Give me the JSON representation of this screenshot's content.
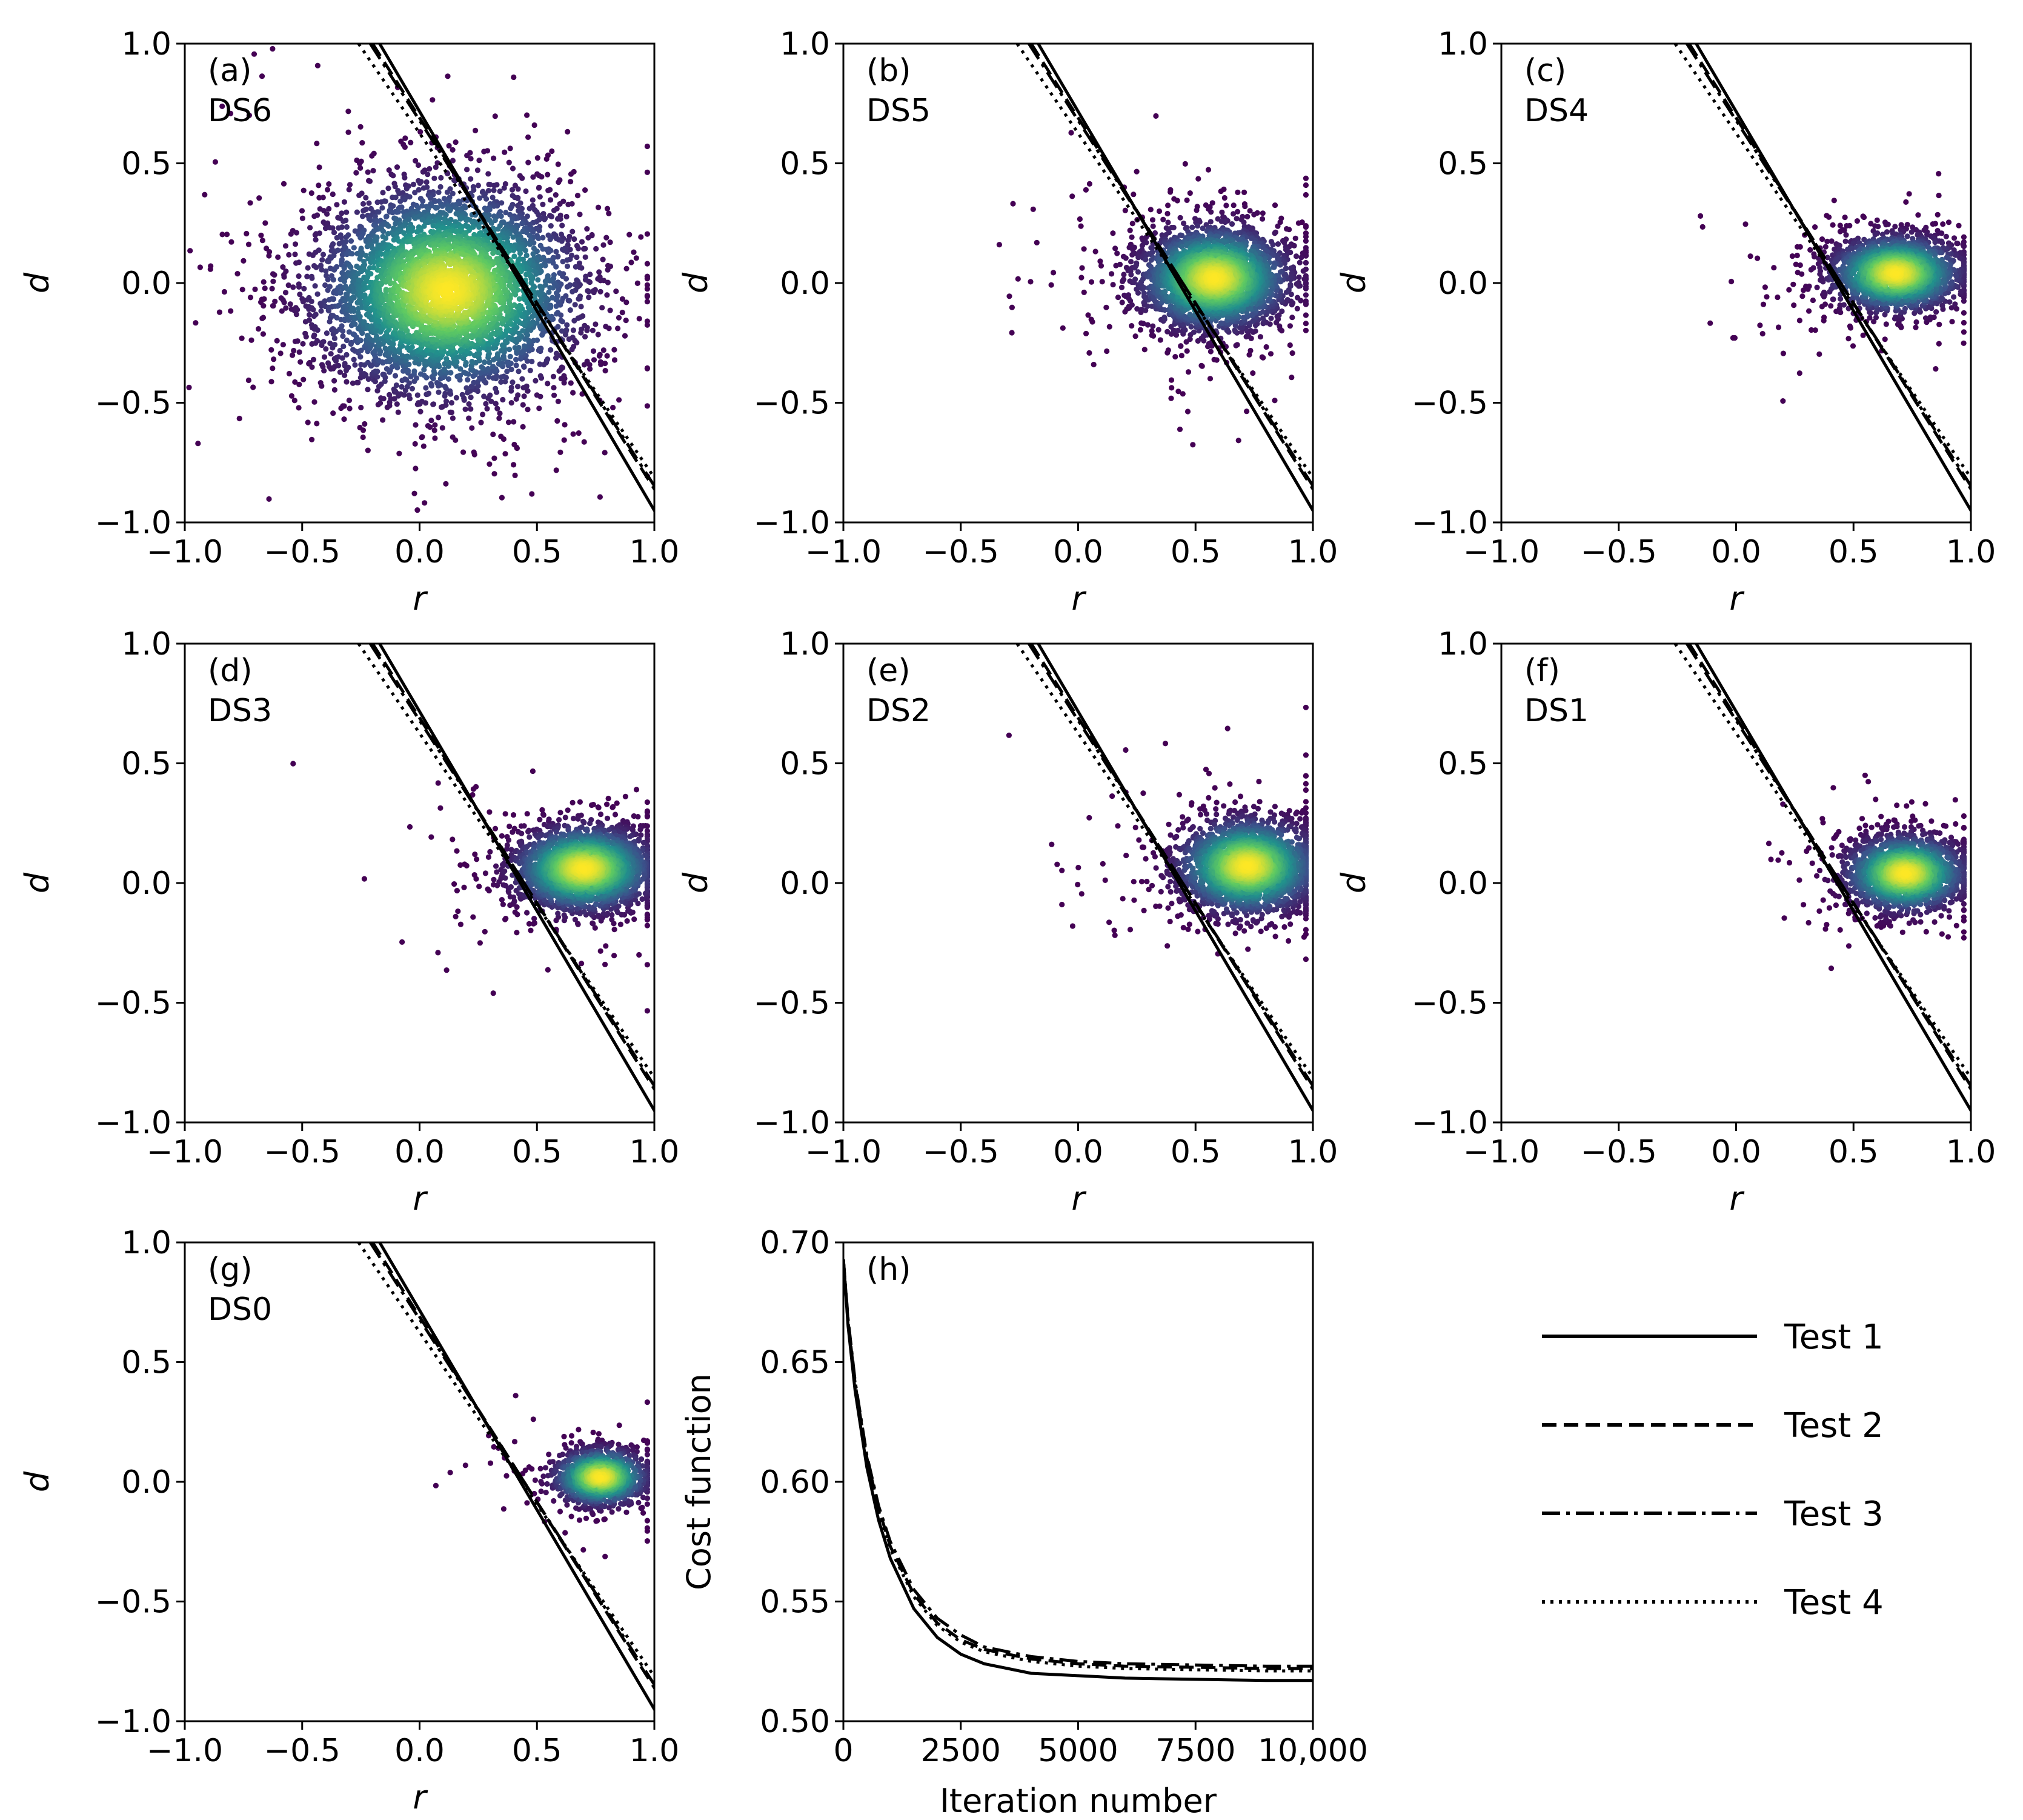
{
  "chart_data": [
    {
      "type": "scatter",
      "panel_label": "(a)",
      "dataset": "DS6",
      "xlabel": "r",
      "ylabel": "d",
      "xlim": [
        -1.0,
        1.0
      ],
      "ylim": [
        -1.0,
        1.0
      ],
      "xticks": [
        "−1.0",
        "−0.5",
        "0.0",
        "0.5",
        "1.0"
      ],
      "yticks": [
        "−1.0",
        "−0.5",
        "0.0",
        "0.5",
        "1.0"
      ],
      "cluster": {
        "center_r": 0.12,
        "center_d": -0.03,
        "spread_r": 0.28,
        "spread_d": 0.22,
        "n_points": 4500
      },
      "boundary_lines": [
        {
          "name": "Test 1",
          "style": "solid",
          "r_at_d1": -0.17,
          "r_at_dm1": 1.03
        },
        {
          "name": "Test 2",
          "style": "dashed",
          "r_at_d1": -0.2,
          "r_at_dm1": 1.09
        },
        {
          "name": "Test 3",
          "style": "dashdot",
          "r_at_d1": -0.21,
          "r_at_dm1": 1.1
        },
        {
          "name": "Test 4",
          "style": "dotted",
          "r_at_d1": -0.26,
          "r_at_dm1": 1.13
        }
      ]
    },
    {
      "type": "scatter",
      "panel_label": "(b)",
      "dataset": "DS5",
      "xlabel": "r",
      "ylabel": "d",
      "xlim": [
        -1.0,
        1.0
      ],
      "ylim": [
        -1.0,
        1.0
      ],
      "xticks": [
        "−1.0",
        "−0.5",
        "0.0",
        "0.5",
        "1.0"
      ],
      "yticks": [
        "−1.0",
        "−0.5",
        "0.0",
        "0.5",
        "1.0"
      ],
      "cluster": {
        "center_r": 0.58,
        "center_d": 0.02,
        "spread_r": 0.16,
        "spread_d": 0.11,
        "n_points": 2800
      },
      "boundary_lines": [
        {
          "name": "Test 1",
          "style": "solid",
          "r_at_d1": -0.17,
          "r_at_dm1": 1.03
        },
        {
          "name": "Test 2",
          "style": "dashed",
          "r_at_d1": -0.2,
          "r_at_dm1": 1.09
        },
        {
          "name": "Test 3",
          "style": "dashdot",
          "r_at_d1": -0.21,
          "r_at_dm1": 1.1
        },
        {
          "name": "Test 4",
          "style": "dotted",
          "r_at_d1": -0.26,
          "r_at_dm1": 1.13
        }
      ]
    },
    {
      "type": "scatter",
      "panel_label": "(c)",
      "dataset": "DS4",
      "xlabel": "r",
      "ylabel": "d",
      "xlim": [
        -1.0,
        1.0
      ],
      "ylim": [
        -1.0,
        1.0
      ],
      "xticks": [
        "−1.0",
        "−0.5",
        "0.0",
        "0.5",
        "1.0"
      ],
      "yticks": [
        "−1.0",
        "−0.5",
        "0.0",
        "0.5",
        "1.0"
      ],
      "cluster": {
        "center_r": 0.68,
        "center_d": 0.04,
        "spread_r": 0.14,
        "spread_d": 0.08,
        "n_points": 2000
      },
      "boundary_lines": [
        {
          "name": "Test 1",
          "style": "solid",
          "r_at_d1": -0.17,
          "r_at_dm1": 1.03
        },
        {
          "name": "Test 2",
          "style": "dashed",
          "r_at_d1": -0.2,
          "r_at_dm1": 1.09
        },
        {
          "name": "Test 3",
          "style": "dashdot",
          "r_at_d1": -0.21,
          "r_at_dm1": 1.1
        },
        {
          "name": "Test 4",
          "style": "dotted",
          "r_at_d1": -0.26,
          "r_at_dm1": 1.13
        }
      ]
    },
    {
      "type": "scatter",
      "panel_label": "(d)",
      "dataset": "DS3",
      "xlabel": "r",
      "ylabel": "d",
      "xlim": [
        -1.0,
        1.0
      ],
      "ylim": [
        -1.0,
        1.0
      ],
      "xticks": [
        "−1.0",
        "−0.5",
        "0.0",
        "0.5",
        "1.0"
      ],
      "yticks": [
        "−1.0",
        "−0.5",
        "0.0",
        "0.5",
        "1.0"
      ],
      "cluster": {
        "center_r": 0.7,
        "center_d": 0.06,
        "spread_r": 0.15,
        "spread_d": 0.09,
        "n_points": 2400
      },
      "boundary_lines": [
        {
          "name": "Test 1",
          "style": "solid",
          "r_at_d1": -0.17,
          "r_at_dm1": 1.03
        },
        {
          "name": "Test 2",
          "style": "dashed",
          "r_at_d1": -0.2,
          "r_at_dm1": 1.09
        },
        {
          "name": "Test 3",
          "style": "dashdot",
          "r_at_d1": -0.21,
          "r_at_dm1": 1.1
        },
        {
          "name": "Test 4",
          "style": "dotted",
          "r_at_d1": -0.26,
          "r_at_dm1": 1.13
        }
      ]
    },
    {
      "type": "scatter",
      "panel_label": "(e)",
      "dataset": "DS2",
      "xlabel": "r",
      "ylabel": "d",
      "xlim": [
        -1.0,
        1.0
      ],
      "ylim": [
        -1.0,
        1.0
      ],
      "xticks": [
        "−1.0",
        "−0.5",
        "0.0",
        "0.5",
        "1.0"
      ],
      "yticks": [
        "−1.0",
        "−0.5",
        "0.0",
        "0.5",
        "1.0"
      ],
      "cluster": {
        "center_r": 0.72,
        "center_d": 0.07,
        "spread_r": 0.15,
        "spread_d": 0.1,
        "n_points": 2400
      },
      "boundary_lines": [
        {
          "name": "Test 1",
          "style": "solid",
          "r_at_d1": -0.17,
          "r_at_dm1": 1.03
        },
        {
          "name": "Test 2",
          "style": "dashed",
          "r_at_d1": -0.2,
          "r_at_dm1": 1.09
        },
        {
          "name": "Test 3",
          "style": "dashdot",
          "r_at_d1": -0.21,
          "r_at_dm1": 1.1
        },
        {
          "name": "Test 4",
          "style": "dotted",
          "r_at_d1": -0.26,
          "r_at_dm1": 1.13
        }
      ]
    },
    {
      "type": "scatter",
      "panel_label": "(f)",
      "dataset": "DS1",
      "xlabel": "r",
      "ylabel": "d",
      "xlim": [
        -1.0,
        1.0
      ],
      "ylim": [
        -1.0,
        1.0
      ],
      "xticks": [
        "−1.0",
        "−0.5",
        "0.0",
        "0.5",
        "1.0"
      ],
      "yticks": [
        "−1.0",
        "−0.5",
        "0.0",
        "0.5",
        "1.0"
      ],
      "cluster": {
        "center_r": 0.72,
        "center_d": 0.04,
        "spread_r": 0.13,
        "spread_d": 0.08,
        "n_points": 1800
      },
      "boundary_lines": [
        {
          "name": "Test 1",
          "style": "solid",
          "r_at_d1": -0.17,
          "r_at_dm1": 1.03
        },
        {
          "name": "Test 2",
          "style": "dashed",
          "r_at_d1": -0.2,
          "r_at_dm1": 1.09
        },
        {
          "name": "Test 3",
          "style": "dashdot",
          "r_at_d1": -0.21,
          "r_at_dm1": 1.1
        },
        {
          "name": "Test 4",
          "style": "dotted",
          "r_at_d1": -0.26,
          "r_at_dm1": 1.13
        }
      ]
    },
    {
      "type": "scatter",
      "panel_label": "(g)",
      "dataset": "DS0",
      "xlabel": "r",
      "ylabel": "d",
      "xlim": [
        -1.0,
        1.0
      ],
      "ylim": [
        -1.0,
        1.0
      ],
      "xticks": [
        "−1.0",
        "−0.5",
        "0.0",
        "0.5",
        "1.0"
      ],
      "yticks": [
        "−1.0",
        "−0.5",
        "0.0",
        "0.5",
        "1.0"
      ],
      "cluster": {
        "center_r": 0.77,
        "center_d": 0.02,
        "spread_r": 0.1,
        "spread_d": 0.06,
        "n_points": 1200
      },
      "boundary_lines": [
        {
          "name": "Test 1",
          "style": "solid",
          "r_at_d1": -0.17,
          "r_at_dm1": 1.03
        },
        {
          "name": "Test 2",
          "style": "dashed",
          "r_at_d1": -0.2,
          "r_at_dm1": 1.09
        },
        {
          "name": "Test 3",
          "style": "dashdot",
          "r_at_d1": -0.21,
          "r_at_dm1": 1.1
        },
        {
          "name": "Test 4",
          "style": "dotted",
          "r_at_d1": -0.26,
          "r_at_dm1": 1.13
        }
      ]
    },
    {
      "type": "line",
      "panel_label": "(h)",
      "xlabel": "Iteration number",
      "ylabel": "Cost function",
      "xlim": [
        0,
        10000
      ],
      "ylim": [
        0.5,
        0.7
      ],
      "xticks": [
        "0",
        "2500",
        "5000",
        "7500",
        "10,000"
      ],
      "yticks": [
        "0.50",
        "0.55",
        "0.60",
        "0.65",
        "0.70"
      ],
      "x": [
        0,
        100,
        250,
        500,
        750,
        1000,
        1500,
        2000,
        2500,
        3000,
        4000,
        5000,
        6000,
        7500,
        9000,
        10000
      ],
      "series": [
        {
          "name": "Test 1",
          "style": "solid",
          "values": [
            0.693,
            0.665,
            0.638,
            0.606,
            0.584,
            0.568,
            0.547,
            0.535,
            0.528,
            0.524,
            0.52,
            0.519,
            0.518,
            0.5175,
            0.517,
            0.517
          ]
        },
        {
          "name": "Test 2",
          "style": "dashed",
          "values": [
            0.693,
            0.667,
            0.641,
            0.61,
            0.589,
            0.573,
            0.553,
            0.541,
            0.534,
            0.53,
            0.526,
            0.524,
            0.523,
            0.5225,
            0.522,
            0.522
          ]
        },
        {
          "name": "Test 3",
          "style": "dashdot",
          "values": [
            0.693,
            0.668,
            0.642,
            0.611,
            0.59,
            0.575,
            0.555,
            0.543,
            0.536,
            0.531,
            0.527,
            0.525,
            0.524,
            0.5235,
            0.523,
            0.523
          ]
        },
        {
          "name": "Test 4",
          "style": "dotted",
          "values": [
            0.693,
            0.666,
            0.64,
            0.609,
            0.588,
            0.572,
            0.552,
            0.54,
            0.533,
            0.529,
            0.525,
            0.523,
            0.522,
            0.5215,
            0.521,
            0.521
          ]
        }
      ]
    }
  ],
  "legend": {
    "entries": [
      {
        "label": "Test 1",
        "style": "solid"
      },
      {
        "label": "Test 2",
        "style": "dashed"
      },
      {
        "label": "Test 3",
        "style": "dashdot"
      },
      {
        "label": "Test 4",
        "style": "dotted"
      }
    ]
  },
  "colors": {
    "viridis_low": "#440154",
    "viridis_mid": "#21918c",
    "viridis_high": "#fde725",
    "line": "#000000"
  }
}
